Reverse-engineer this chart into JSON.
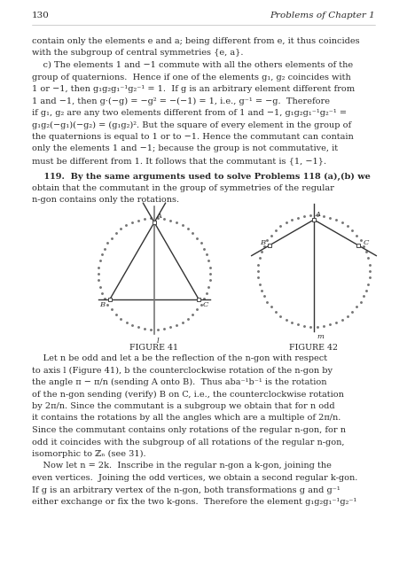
{
  "page_number": "130",
  "header_right": "Problems of Chapter 1",
  "background_color": "#ffffff",
  "text_color": "#2a2a2a",
  "body_text": [
    "contain only the elements e and a; being different from e, it thus coincides",
    "with the subgroup of central symmetries {e, a}.",
    "    c) The elements 1 and −1 commute with all the others elements of the",
    "group of quaternions.  Hence if one of the elements g₁, g₂ coincides with",
    "1 or −1, then g₁g₂g₁⁻¹g₂⁻¹ = 1.  If g is an arbitrary element different from",
    "1 and −1, then g·(−g) = −g² = −(−1) = 1, i.e., g⁻¹ = −g.  Therefore",
    "if g₁, g₂ are any two elements different from of 1 and −1, g₁g₂g₁⁻¹g₂⁻¹ =",
    "g₁g₂(−g₁)(−g₂) = (g₁g₂)². But the square of every element in the group of",
    "the quaternions is equal to 1 or to −1. Hence the commutant can contain",
    "only the elements 1 and −1; because the group is not commutative, it",
    "must be different from 1. It follows that the commutant is {1, −1}."
  ],
  "problem_119_text": [
    "    119.  By the same arguments used to solve Problems 118 (a),(b) we",
    "obtain that the commutant in the group of symmetries of the regular",
    "n-gon contains only the rotations."
  ],
  "bottom_text": [
    "    Let n be odd and let a be the reflection of the n-gon with respect",
    "to axis l (Figure 41), b the counterclockwise rotation of the n-gon by",
    "the angle π − π/n (sending A onto B).  Thus aba⁻¹b⁻¹ is the rotation",
    "of the n-gon sending (verify) B on C, i.e., the counterclockwise rotation",
    "by 2π/n. Since the commutant is a subgroup we obtain that for n odd",
    "it contains the rotations by all the angles which are a multiple of 2π/n.",
    "Since the commutant contains only rotations of the regular n-gon, for n",
    "odd it coincides with the subgroup of all rotations of the regular n-gon,",
    "isomorphic to ℤₙ (see 31).",
    "    Now let n = 2k.  Inscribe in the regular n-gon a k-gon, joining the",
    "even vertices.  Joining the odd vertices, we obtain a second regular k-gon.",
    "If g is an arbitrary vertex of the n-gon, both transformations g and g⁻¹",
    "either exchange or fix the two k-gons.  Therefore the element g₁g₂g₁⁻¹g₂⁻¹"
  ],
  "fig41_caption": "FIGURE 41",
  "fig42_caption": "FIGURE 42"
}
